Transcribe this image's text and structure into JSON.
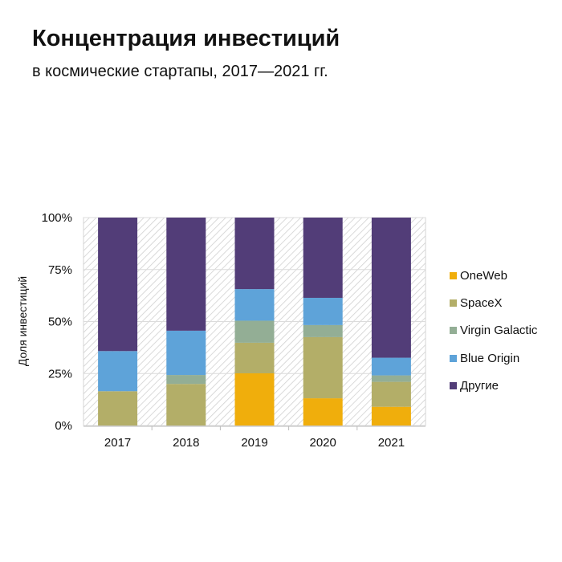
{
  "title": "Концентрация инвестиций",
  "subtitle": "в космические стартапы, 2017—2021 гг.",
  "chart_data": {
    "type": "bar",
    "stacked": true,
    "normalized": true,
    "ylabel": "Доля инвестиций",
    "xlabel": "",
    "ylim": [
      0,
      100
    ],
    "yticks": [
      "0%",
      "25%",
      "50%",
      "75%",
      "100%"
    ],
    "yticks_values": [
      0,
      25,
      50,
      75,
      100
    ],
    "categories": [
      "2017",
      "2018",
      "2019",
      "2020",
      "2021"
    ],
    "legend_position": "right",
    "grid": true,
    "series": [
      {
        "name": "OneWeb",
        "color": "#F0AE0C",
        "values": [
          0,
          0,
          25.1,
          13.1,
          9.0
        ]
      },
      {
        "name": "SpaceX",
        "color": "#B3AE68",
        "values": [
          16.5,
          20.0,
          14.7,
          29.4,
          12.0
        ]
      },
      {
        "name": "Virgin Galactic",
        "color": "#93AE95",
        "values": [
          0,
          4.3,
          10.6,
          5.8,
          3.1
        ]
      },
      {
        "name": "Blue Origin",
        "color": "#5EA3D9",
        "values": [
          19.3,
          21.3,
          15.2,
          13.1,
          8.5
        ]
      },
      {
        "name": "Другие",
        "color": "#523D78",
        "values": [
          64.2,
          54.4,
          34.4,
          38.6,
          67.4
        ]
      }
    ]
  }
}
